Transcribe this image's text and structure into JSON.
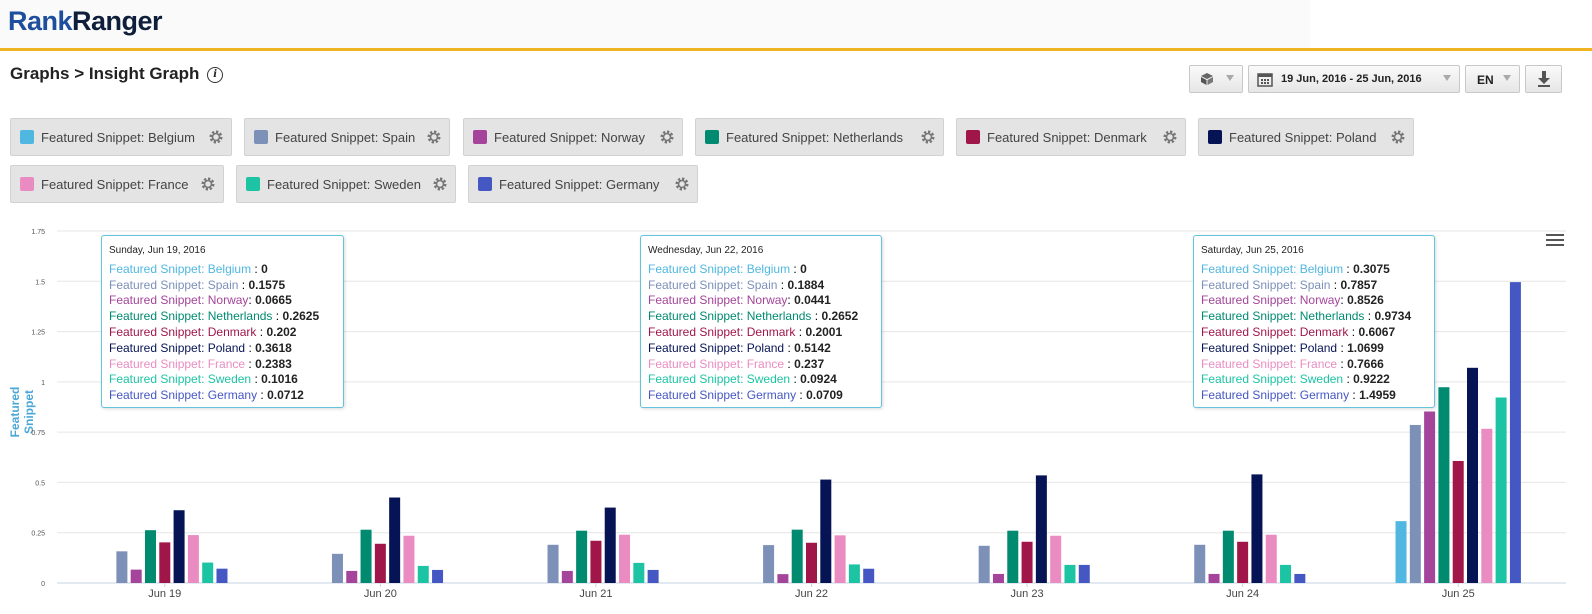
{
  "app": {
    "logo_rank": "Rank",
    "logo_ranger": "Ranger"
  },
  "page": {
    "title": "Graphs > Insight Graph"
  },
  "toolbar": {
    "date_range": "19 Jun, 2016 - 25 Jun, 2016",
    "language": "EN"
  },
  "legend": [
    {
      "name": "Featured Snippet: Belgium",
      "color": "#4fb7e0"
    },
    {
      "name": "Featured Snippet: Spain",
      "color": "#7c90b8"
    },
    {
      "name": "Featured Snippet: Norway",
      "color": "#a4449a"
    },
    {
      "name": "Featured Snippet: Netherlands",
      "color": "#008a70"
    },
    {
      "name": "Featured Snippet: Denmark",
      "color": "#a01649"
    },
    {
      "name": "Featured Snippet: Poland",
      "color": "#061455"
    },
    {
      "name": "Featured Snippet: France",
      "color": "#ea8cc2"
    },
    {
      "name": "Featured Snippet: Sweden",
      "color": "#1cc4a4"
    },
    {
      "name": "Featured Snippet: Germany",
      "color": "#4557c3"
    }
  ],
  "tooltips": [
    {
      "date": "Sunday, Jun 19, 2016",
      "values": [
        "0",
        "0.1575",
        "0.0665",
        "0.2625",
        "0.202",
        "0.3618",
        "0.2383",
        "0.1016",
        "0.0712"
      ]
    },
    {
      "date": "Wednesday, Jun 22, 2016",
      "values": [
        "0",
        "0.1884",
        "0.0441",
        "0.2652",
        "0.2001",
        "0.5142",
        "0.237",
        "0.0924",
        "0.0709"
      ]
    },
    {
      "date": "Saturday, Jun 25, 2016",
      "values": [
        "0.3075",
        "0.7857",
        "0.8526",
        "0.9734",
        "0.6067",
        "1.0699",
        "0.7666",
        "0.9222",
        "1.4959"
      ]
    }
  ],
  "chart_data": {
    "type": "bar",
    "ylabel": "Featured Snippet",
    "xlabel": "",
    "ylim": [
      0,
      1.75
    ],
    "yticks": [
      "0",
      "0.25",
      "0.5",
      "0.75",
      "1",
      "1.25",
      "1.5",
      "1.75"
    ],
    "grid": true,
    "categories": [
      "Jun 19",
      "Jun 20",
      "Jun 21",
      "Jun 22",
      "Jun 23",
      "Jun 24",
      "Jun 25"
    ],
    "series": [
      {
        "name": "Featured Snippet: Belgium",
        "values": [
          0,
          0,
          0,
          0,
          0,
          0,
          0.3075
        ]
      },
      {
        "name": "Featured Snippet: Spain",
        "values": [
          0.1575,
          0.145,
          0.19,
          0.1884,
          0.185,
          0.19,
          0.7857
        ]
      },
      {
        "name": "Featured Snippet: Norway",
        "values": [
          0.0665,
          0.06,
          0.06,
          0.0441,
          0.045,
          0.045,
          0.8526
        ]
      },
      {
        "name": "Featured Snippet: Netherlands",
        "values": [
          0.2625,
          0.265,
          0.26,
          0.2652,
          0.26,
          0.26,
          0.9734
        ]
      },
      {
        "name": "Featured Snippet: Denmark",
        "values": [
          0.202,
          0.195,
          0.21,
          0.2001,
          0.205,
          0.205,
          0.6067
        ]
      },
      {
        "name": "Featured Snippet: Poland",
        "values": [
          0.3618,
          0.425,
          0.375,
          0.5142,
          0.535,
          0.54,
          1.0699
        ]
      },
      {
        "name": "Featured Snippet: France",
        "values": [
          0.2383,
          0.235,
          0.24,
          0.237,
          0.235,
          0.24,
          0.7666
        ]
      },
      {
        "name": "Featured Snippet: Sweden",
        "values": [
          0.1016,
          0.085,
          0.1,
          0.0924,
          0.09,
          0.09,
          0.9222
        ]
      },
      {
        "name": "Featured Snippet: Germany",
        "values": [
          0.0712,
          0.065,
          0.065,
          0.0709,
          0.09,
          0.045,
          1.4959
        ]
      }
    ]
  }
}
